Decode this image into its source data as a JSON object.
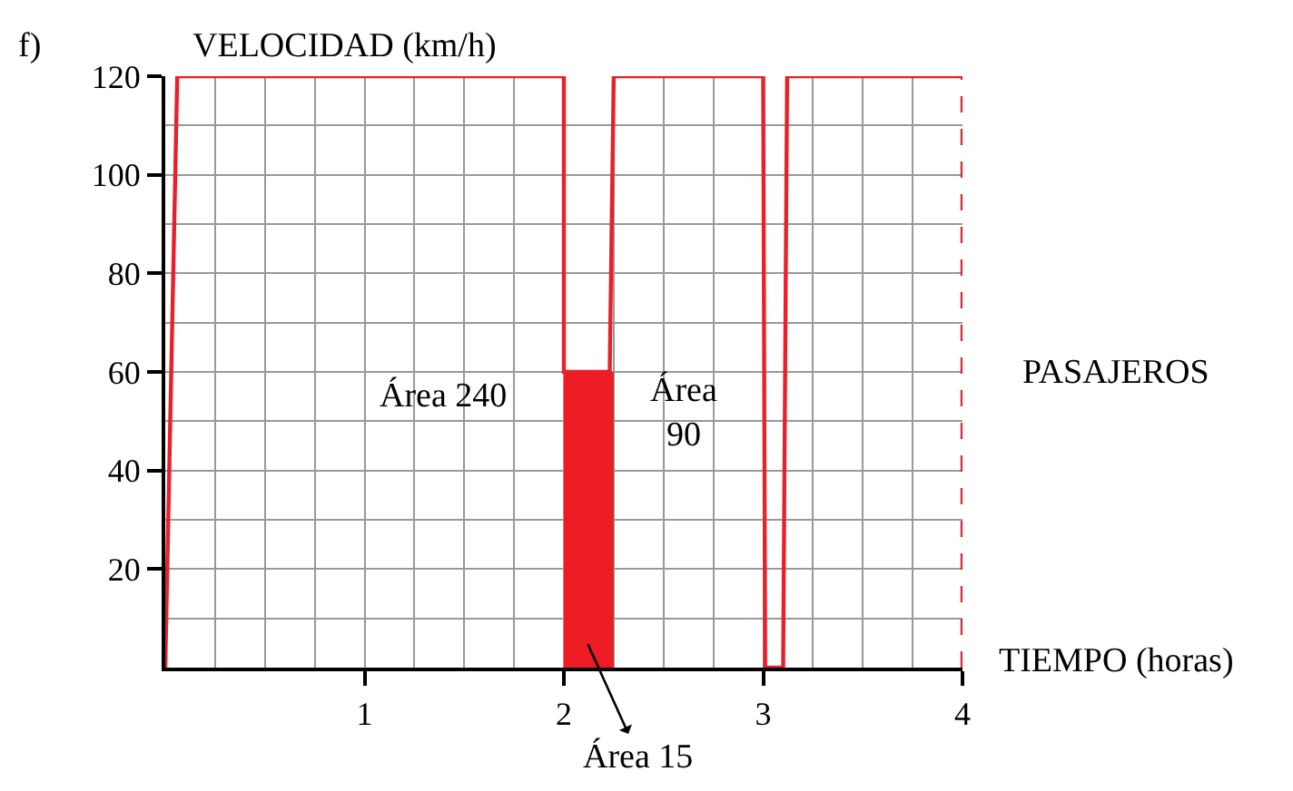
{
  "chart_data": {
    "type": "line",
    "title": "f)",
    "xlabel": "TIEMPO (horas)",
    "ylabel": "VELOCIDAD (km/h)",
    "series": [
      {
        "type": "area",
        "color": "#ed1c24",
        "x": [
          2,
          2.25
        ],
        "values": [
          60,
          60
        ]
      },
      {
        "color": "#e8202a",
        "x": [
          0,
          0.06,
          2,
          2,
          2.23,
          2.25,
          3,
          3.01,
          3.1,
          3.12,
          4
        ],
        "values": [
          0,
          120,
          120,
          60,
          60,
          120,
          120,
          0,
          0,
          120,
          120
        ]
      }
    ],
    "xlim": [
      0,
      4
    ],
    "ylim": [
      0,
      120
    ],
    "xticks": [
      {
        "value": 0,
        "label": null
      },
      {
        "value": 0.25,
        "label": null
      },
      {
        "value": 0.5,
        "label": null
      },
      {
        "value": 0.75,
        "label": null
      },
      1,
      {
        "value": 1.25,
        "label": null
      },
      {
        "value": 1.5,
        "label": null
      },
      {
        "value": 1.75,
        "label": null
      },
      2,
      {
        "value": 2.25,
        "label": null
      },
      {
        "value": 2.5,
        "label": null
      },
      {
        "value": 2.75,
        "label": null
      },
      3,
      {
        "value": 3.25,
        "label": null
      },
      {
        "value": 3.5,
        "label": null
      },
      {
        "value": 3.75,
        "label": null
      },
      4
    ],
    "yticks": [
      {
        "value": 0,
        "label": null
      },
      {
        "value": 10,
        "label": null
      },
      20,
      {
        "value": 30,
        "label": null
      },
      40,
      {
        "value": 50,
        "label": null
      },
      60,
      {
        "value": 70,
        "label": null
      },
      80,
      {
        "value": 90,
        "label": null
      },
      100,
      {
        "value": 110,
        "label": null
      },
      120
    ],
    "grid": true,
    "marker": "none",
    "line_style": "solid",
    "ref_lines": [
      {
        "axis": "x",
        "value": 4,
        "color": "#e8202a",
        "line_style": "dashed"
      }
    ],
    "annotations": [
      "Área 240",
      "Área\n90",
      "Área 15",
      "PASAJEROS"
    ]
  }
}
